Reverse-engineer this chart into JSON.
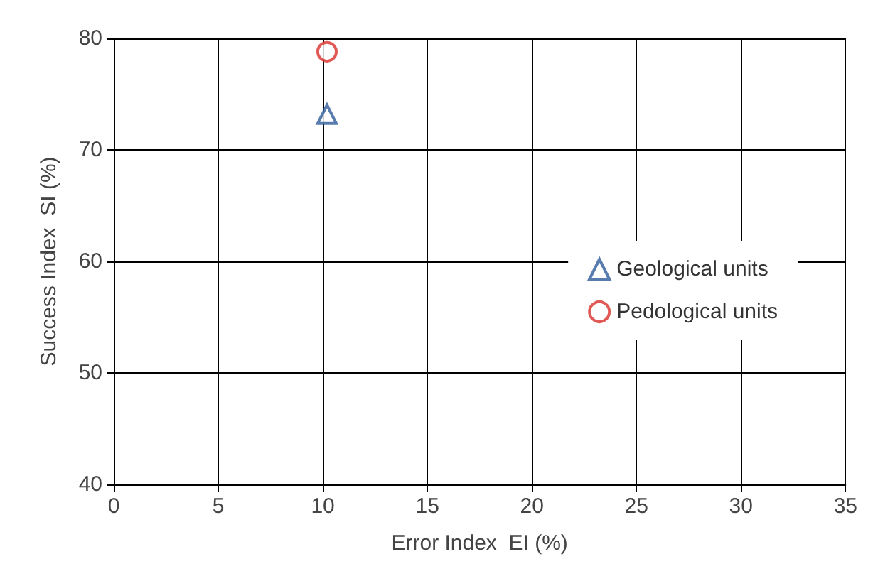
{
  "chart_data": {
    "type": "scatter",
    "xlabel": "Error Index  EI (%)",
    "ylabel": "Success Index  SI (%)",
    "xlim": [
      0,
      35
    ],
    "xticks": [
      0,
      5,
      10,
      15,
      20,
      25,
      30,
      35
    ],
    "ylim": [
      40,
      80
    ],
    "yticks": [
      40,
      50,
      60,
      70,
      80
    ],
    "grid": true,
    "legend": "right",
    "series": [
      {
        "name": "Geological units",
        "color": "#2e5b9a",
        "marker": "triangle",
        "x": [
          10.2
        ],
        "values": [
          73.2
        ]
      },
      {
        "name": "Pedological units",
        "color": "#d9302b",
        "marker": "circle",
        "x": [
          10.2
        ],
        "values": [
          78.8
        ]
      }
    ]
  }
}
